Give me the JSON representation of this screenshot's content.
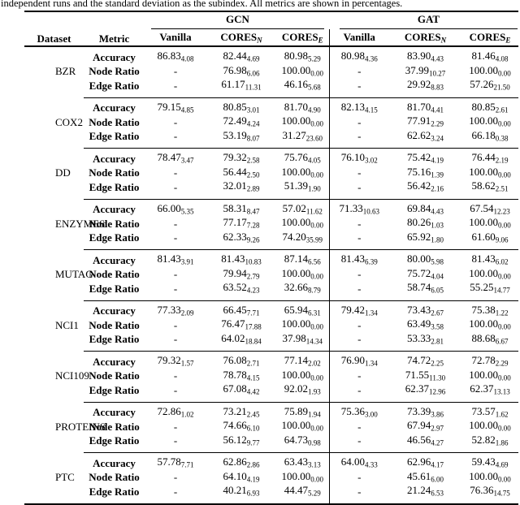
{
  "caption": "independent runs and the standard deviation as the subindex. All metrics are shown in percentages.",
  "table": {
    "col1_header": "Dataset",
    "col2_header": "Metric",
    "group_headers": [
      "GCN",
      "GAT"
    ],
    "sub_headers": [
      {
        "label": "Vanilla",
        "sub": ""
      },
      {
        "label": "CORES",
        "sub": "N"
      },
      {
        "label": "CORES",
        "sub": "E"
      },
      {
        "label": "Vanilla",
        "sub": ""
      },
      {
        "label": "CORES",
        "sub": "N"
      },
      {
        "label": "CORES",
        "sub": "E"
      }
    ],
    "groups": [
      {
        "dataset": "BZR",
        "rows": [
          {
            "metric": "Accuracy",
            "cells": [
              [
                "86.83",
                "4.08"
              ],
              [
                "82.44",
                "4.69"
              ],
              [
                "80.98",
                "5.29"
              ],
              [
                "80.98",
                "4.36"
              ],
              [
                "83.90",
                "4.43"
              ],
              [
                "81.46",
                "4.08"
              ]
            ]
          },
          {
            "metric": "Node Ratio",
            "cells": [
              [
                "-",
                ""
              ],
              [
                "76.98",
                "6.06"
              ],
              [
                "100.00",
                "0.00"
              ],
              [
                "-",
                ""
              ],
              [
                "37.99",
                "10.27"
              ],
              [
                "100.00",
                "0.00"
              ]
            ]
          },
          {
            "metric": "Edge Ratio",
            "cells": [
              [
                "-",
                ""
              ],
              [
                "61.17",
                "11.31"
              ],
              [
                "46.16",
                "5.68"
              ],
              [
                "-",
                ""
              ],
              [
                "29.92",
                "8.83"
              ],
              [
                "57.26",
                "21.50"
              ]
            ]
          }
        ]
      },
      {
        "dataset": "COX2",
        "rows": [
          {
            "metric": "Accuracy",
            "cells": [
              [
                "79.15",
                "4.85"
              ],
              [
                "80.85",
                "3.01"
              ],
              [
                "81.70",
                "4.90"
              ],
              [
                "82.13",
                "4.15"
              ],
              [
                "81.70",
                "4.41"
              ],
              [
                "80.85",
                "2.61"
              ]
            ]
          },
          {
            "metric": "Node Ratio",
            "cells": [
              [
                "-",
                ""
              ],
              [
                "72.49",
                "4.24"
              ],
              [
                "100.00",
                "0.00"
              ],
              [
                "-",
                ""
              ],
              [
                "77.91",
                "2.29"
              ],
              [
                "100.00",
                "0.00"
              ]
            ]
          },
          {
            "metric": "Edge Ratio",
            "cells": [
              [
                "-",
                ""
              ],
              [
                "53.19",
                "8.07"
              ],
              [
                "31.27",
                "23.60"
              ],
              [
                "-",
                ""
              ],
              [
                "62.62",
                "3.24"
              ],
              [
                "66.18",
                "0.38"
              ]
            ]
          }
        ]
      },
      {
        "dataset": "DD",
        "rows": [
          {
            "metric": "Accuracy",
            "cells": [
              [
                "78.47",
                "3.47"
              ],
              [
                "79.32",
                "2.58"
              ],
              [
                "75.76",
                "4.05"
              ],
              [
                "76.10",
                "3.02"
              ],
              [
                "75.42",
                "4.19"
              ],
              [
                "76.44",
                "2.19"
              ]
            ]
          },
          {
            "metric": "Node Ratio",
            "cells": [
              [
                "-",
                ""
              ],
              [
                "56.44",
                "2.50"
              ],
              [
                "100.00",
                "0.00"
              ],
              [
                "-",
                ""
              ],
              [
                "75.16",
                "1.39"
              ],
              [
                "100.00",
                "0.00"
              ]
            ]
          },
          {
            "metric": "Edge Ratio",
            "cells": [
              [
                "-",
                ""
              ],
              [
                "32.01",
                "2.89"
              ],
              [
                "51.39",
                "1.90"
              ],
              [
                "-",
                ""
              ],
              [
                "56.42",
                "2.16"
              ],
              [
                "58.62",
                "2.51"
              ]
            ]
          }
        ]
      },
      {
        "dataset": "ENZYMES",
        "rows": [
          {
            "metric": "Accuracy",
            "cells": [
              [
                "66.00",
                "5.35"
              ],
              [
                "58.31",
                "8.47"
              ],
              [
                "57.02",
                "11.62"
              ],
              [
                "71.33",
                "10.63"
              ],
              [
                "69.84",
                "4.43"
              ],
              [
                "67.54",
                "12.23"
              ]
            ]
          },
          {
            "metric": "Node Ratio",
            "cells": [
              [
                "-",
                ""
              ],
              [
                "77.17",
                "7.28"
              ],
              [
                "100.00",
                "0.00"
              ],
              [
                "-",
                ""
              ],
              [
                "80.26",
                "1.03"
              ],
              [
                "100.00",
                "0.00"
              ]
            ]
          },
          {
            "metric": "Edge Ratio",
            "cells": [
              [
                "-",
                ""
              ],
              [
                "62.33",
                "9.26"
              ],
              [
                "74.20",
                "35.99"
              ],
              [
                "-",
                ""
              ],
              [
                "65.92",
                "1.80"
              ],
              [
                "61.60",
                "9.06"
              ]
            ]
          }
        ]
      },
      {
        "dataset": "MUTAG",
        "rows": [
          {
            "metric": "Accuracy",
            "cells": [
              [
                "81.43",
                "3.91"
              ],
              [
                "81.43",
                "10.83"
              ],
              [
                "87.14",
                "6.56"
              ],
              [
                "81.43",
                "6.39"
              ],
              [
                "80.00",
                "5.98"
              ],
              [
                "81.43",
                "6.02"
              ]
            ]
          },
          {
            "metric": "Node Ratio",
            "cells": [
              [
                "-",
                ""
              ],
              [
                "79.94",
                "2.79"
              ],
              [
                "100.00",
                "0.00"
              ],
              [
                "-",
                ""
              ],
              [
                "75.72",
                "4.04"
              ],
              [
                "100.00",
                "0.00"
              ]
            ]
          },
          {
            "metric": "Edge Ratio",
            "cells": [
              [
                "-",
                ""
              ],
              [
                "63.52",
                "4.23"
              ],
              [
                "32.66",
                "8.79"
              ],
              [
                "-",
                ""
              ],
              [
                "58.74",
                "6.05"
              ],
              [
                "55.25",
                "14.77"
              ]
            ]
          }
        ]
      },
      {
        "dataset": "NCI1",
        "rows": [
          {
            "metric": "Accuracy",
            "cells": [
              [
                "77.33",
                "2.09"
              ],
              [
                "66.45",
                "7.71"
              ],
              [
                "65.94",
                "6.31"
              ],
              [
                "79.42",
                "1.34"
              ],
              [
                "73.43",
                "2.67"
              ],
              [
                "75.38",
                "1.22"
              ]
            ]
          },
          {
            "metric": "Node Ratio",
            "cells": [
              [
                "-",
                ""
              ],
              [
                "76.47",
                "17.88"
              ],
              [
                "100.00",
                "0.00"
              ],
              [
                "-",
                ""
              ],
              [
                "63.49",
                "3.58"
              ],
              [
                "100.00",
                "0.00"
              ]
            ]
          },
          {
            "metric": "Edge Ratio",
            "cells": [
              [
                "-",
                ""
              ],
              [
                "64.02",
                "18.84"
              ],
              [
                "37.98",
                "14.34"
              ],
              [
                "-",
                ""
              ],
              [
                "53.33",
                "2.81"
              ],
              [
                "88.68",
                "6.67"
              ]
            ]
          }
        ]
      },
      {
        "dataset": "NCI109",
        "rows": [
          {
            "metric": "Accuracy",
            "cells": [
              [
                "79.32",
                "1.57"
              ],
              [
                "76.08",
                "2.71"
              ],
              [
                "77.14",
                "2.02"
              ],
              [
                "76.90",
                "1.34"
              ],
              [
                "74.72",
                "2.25"
              ],
              [
                "72.78",
                "2.29"
              ]
            ]
          },
          {
            "metric": "Node Ratio",
            "cells": [
              [
                "-",
                ""
              ],
              [
                "78.78",
                "4.15"
              ],
              [
                "100.00",
                "0.00"
              ],
              [
                "-",
                ""
              ],
              [
                "71.55",
                "11.30"
              ],
              [
                "100.00",
                "0.00"
              ]
            ]
          },
          {
            "metric": "Edge Ratio",
            "cells": [
              [
                "-",
                ""
              ],
              [
                "67.08",
                "4.42"
              ],
              [
                "92.02",
                "1.93"
              ],
              [
                "-",
                ""
              ],
              [
                "62.37",
                "12.96"
              ],
              [
                "62.37",
                "13.13"
              ]
            ]
          }
        ]
      },
      {
        "dataset": "PROTEINS",
        "rows": [
          {
            "metric": "Accuracy",
            "cells": [
              [
                "72.86",
                "1.02"
              ],
              [
                "73.21",
                "2.45"
              ],
              [
                "75.89",
                "1.94"
              ],
              [
                "75.36",
                "3.00"
              ],
              [
                "73.39",
                "3.86"
              ],
              [
                "73.57",
                "1.62"
              ]
            ]
          },
          {
            "metric": "Node Ratio",
            "cells": [
              [
                "-",
                ""
              ],
              [
                "74.66",
                "6.10"
              ],
              [
                "100.00",
                "0.00"
              ],
              [
                "-",
                ""
              ],
              [
                "67.94",
                "2.97"
              ],
              [
                "100.00",
                "0.00"
              ]
            ]
          },
          {
            "metric": "Edge Ratio",
            "cells": [
              [
                "-",
                ""
              ],
              [
                "56.12",
                "9.77"
              ],
              [
                "64.73",
                "0.98"
              ],
              [
                "-",
                ""
              ],
              [
                "46.56",
                "4.27"
              ],
              [
                "52.82",
                "1.86"
              ]
            ]
          }
        ]
      },
      {
        "dataset": "PTC",
        "rows": [
          {
            "metric": "Accuracy",
            "cells": [
              [
                "57.78",
                "7.71"
              ],
              [
                "62.86",
                "2.86"
              ],
              [
                "63.43",
                "3.13"
              ],
              [
                "64.00",
                "4.33"
              ],
              [
                "62.96",
                "4.17"
              ],
              [
                "59.43",
                "4.69"
              ]
            ]
          },
          {
            "metric": "Node Ratio",
            "cells": [
              [
                "-",
                ""
              ],
              [
                "64.10",
                "4.19"
              ],
              [
                "100.00",
                "0.00"
              ],
              [
                "-",
                ""
              ],
              [
                "45.61",
                "6.00"
              ],
              [
                "100.00",
                "0.00"
              ]
            ]
          },
          {
            "metric": "Edge Ratio",
            "cells": [
              [
                "-",
                ""
              ],
              [
                "40.21",
                "6.93"
              ],
              [
                "44.47",
                "5.29"
              ],
              [
                "-",
                ""
              ],
              [
                "21.24",
                "6.53"
              ],
              [
                "76.36",
                "14.75"
              ]
            ]
          }
        ]
      }
    ]
  }
}
